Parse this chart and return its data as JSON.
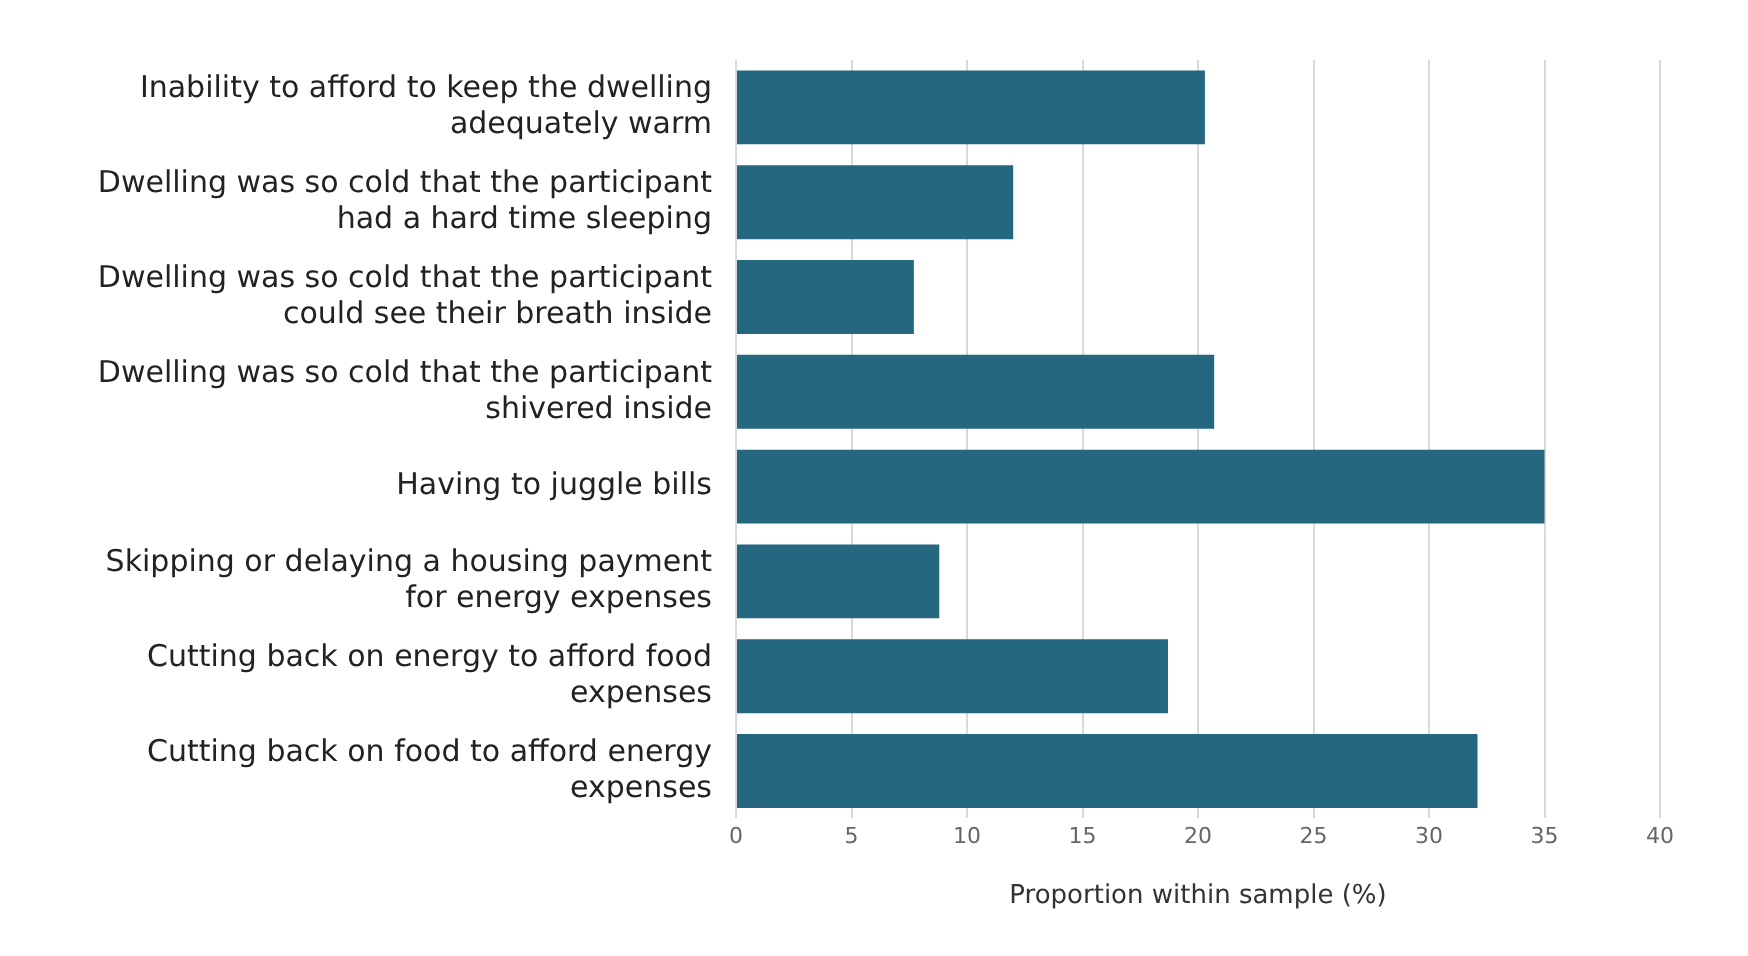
{
  "chart_data": {
    "type": "bar",
    "orientation": "horizontal",
    "xlabel": "Proportion within sample (%)",
    "categories": [
      "Inability to afford to keep the dwelling adequately warm",
      "Dwelling was so cold that the participant had a hard time sleeping",
      "Dwelling was so cold that the participant could see their breath inside",
      "Dwelling was so cold that the participant shivered inside",
      "Having to juggle bills",
      "Skipping or delaying a housing payment for energy expenses",
      "Cutting back on energy to afford food expenses",
      "Cutting back on food to afford energy expenses"
    ],
    "values": [
      20.3,
      12.0,
      7.7,
      20.7,
      35.0,
      8.8,
      18.7,
      32.1
    ],
    "color": "#24677f",
    "xlim": [
      0,
      40
    ],
    "xticks": [
      0,
      5,
      10,
      15,
      20,
      25,
      30,
      35,
      40
    ],
    "grid": "x"
  }
}
